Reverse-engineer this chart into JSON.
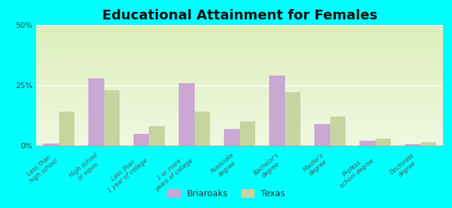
{
  "title": "Educational Attainment for Females",
  "categories": [
    "Less than\nhigh school",
    "High school\nor equiv.",
    "Less than\n1 year of college",
    "1 or more\nyears of college",
    "Associate\ndegree",
    "Bachelor's\ndegree",
    "Master's\ndegree",
    "Profess.\nschool degree",
    "Doctorate\ndegree"
  ],
  "briaroaks": [
    1.0,
    28.0,
    5.0,
    26.0,
    7.0,
    29.0,
    9.0,
    2.0,
    0.5
  ],
  "texas": [
    14.0,
    23.0,
    8.0,
    14.0,
    10.0,
    22.0,
    12.0,
    3.0,
    1.5
  ],
  "briaroaks_color": "#c9a8d4",
  "texas_color": "#c8d4a0",
  "background_color": "#00ffff",
  "ylim": [
    0,
    50
  ],
  "yticks": [
    0,
    25,
    50
  ],
  "ytick_labels": [
    "0%",
    "25%",
    "50%"
  ],
  "bar_width": 0.35,
  "title_fontsize": 14,
  "legend_labels": [
    "Briaroaks",
    "Texas"
  ]
}
